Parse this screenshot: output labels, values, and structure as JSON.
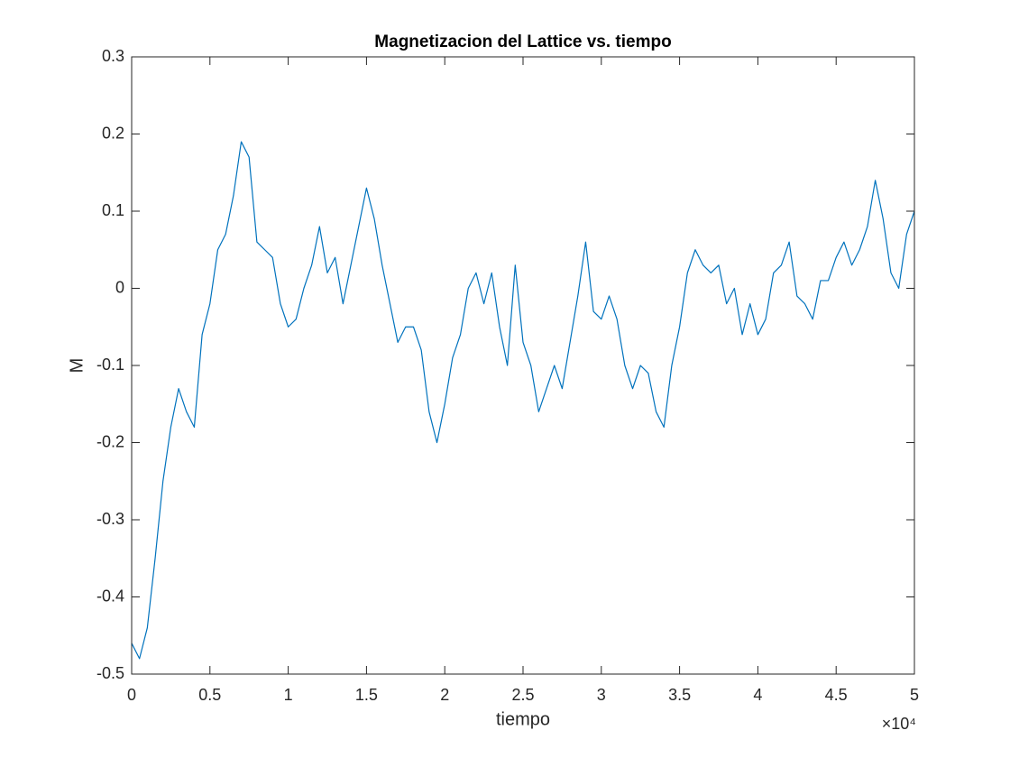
{
  "chart_data": {
    "type": "line",
    "title": "Magnetizacion del Lattice vs. tiempo",
    "xlabel": "tiempo",
    "ylabel": "M",
    "x_multiplier": "×10⁴",
    "color": "#0072bd",
    "grid": false,
    "x": [
      0,
      500,
      1000,
      1500,
      2000,
      2500,
      3000,
      3500,
      4000,
      4500,
      5000,
      5500,
      6000,
      6500,
      7000,
      7500,
      8000,
      8500,
      9000,
      9500,
      10000,
      10500,
      11000,
      11500,
      12000,
      12500,
      13000,
      13500,
      14000,
      14500,
      15000,
      15500,
      16000,
      16500,
      17000,
      17500,
      18000,
      18500,
      19000,
      19500,
      20000,
      20500,
      21000,
      21500,
      22000,
      22500,
      23000,
      23500,
      24000,
      24500,
      25000,
      25500,
      26000,
      26500,
      27000,
      27500,
      28000,
      28500,
      29000,
      29500,
      30000,
      30500,
      31000,
      31500,
      32000,
      32500,
      33000,
      33500,
      34000,
      34500,
      35000,
      35500,
      36000,
      36500,
      37000,
      37500,
      38000,
      38500,
      39000,
      39500,
      40000,
      40500,
      41000,
      41500,
      42000,
      42500,
      43000,
      43500,
      44000,
      44500,
      45000,
      45500,
      46000,
      46500,
      47000,
      47500,
      48000,
      48500,
      49000,
      49500,
      50000
    ],
    "values": [
      -0.46,
      -0.48,
      -0.44,
      -0.35,
      -0.25,
      -0.18,
      -0.13,
      -0.16,
      -0.18,
      -0.06,
      -0.02,
      0.05,
      0.07,
      0.12,
      0.19,
      0.17,
      0.06,
      0.05,
      0.04,
      -0.02,
      -0.05,
      -0.04,
      0.0,
      0.03,
      0.08,
      0.02,
      0.04,
      -0.02,
      0.03,
      0.08,
      0.13,
      0.09,
      0.03,
      -0.02,
      -0.07,
      -0.05,
      -0.05,
      -0.08,
      -0.16,
      -0.2,
      -0.15,
      -0.09,
      -0.06,
      0.0,
      0.02,
      -0.02,
      0.02,
      -0.05,
      -0.1,
      0.03,
      -0.07,
      -0.1,
      -0.16,
      -0.13,
      -0.1,
      -0.13,
      -0.07,
      -0.01,
      0.06,
      -0.03,
      -0.04,
      -0.01,
      -0.04,
      -0.1,
      -0.13,
      -0.1,
      -0.11,
      -0.16,
      -0.18,
      -0.1,
      -0.05,
      0.02,
      0.05,
      0.03,
      0.02,
      0.03,
      -0.02,
      0.0,
      -0.06,
      -0.02,
      -0.06,
      -0.04,
      0.02,
      0.03,
      0.06,
      -0.01,
      -0.02,
      -0.04,
      0.01,
      0.01,
      0.04,
      0.06,
      0.03,
      0.05,
      0.08,
      0.14,
      0.09,
      0.02,
      0.0,
      0.07,
      0.1
    ],
    "xlim": [
      0,
      50000
    ],
    "ylim": [
      -0.5,
      0.3
    ],
    "xticks": [
      0,
      {
        "value": 5000,
        "label": "0.5"
      },
      {
        "value": 10000,
        "label": "1"
      },
      {
        "value": 15000,
        "label": "1.5"
      },
      {
        "value": 20000,
        "label": "2"
      },
      {
        "value": 25000,
        "label": "2.5"
      },
      {
        "value": 30000,
        "label": "3"
      },
      {
        "value": 35000,
        "label": "3.5"
      },
      {
        "value": 40000,
        "label": "4"
      },
      {
        "value": 45000,
        "label": "4.5"
      },
      {
        "value": 50000,
        "label": "5"
      }
    ],
    "yticks": [
      -0.5,
      -0.4,
      -0.3,
      -0.2,
      -0.1,
      0,
      0.1,
      0.2,
      0.3
    ]
  }
}
